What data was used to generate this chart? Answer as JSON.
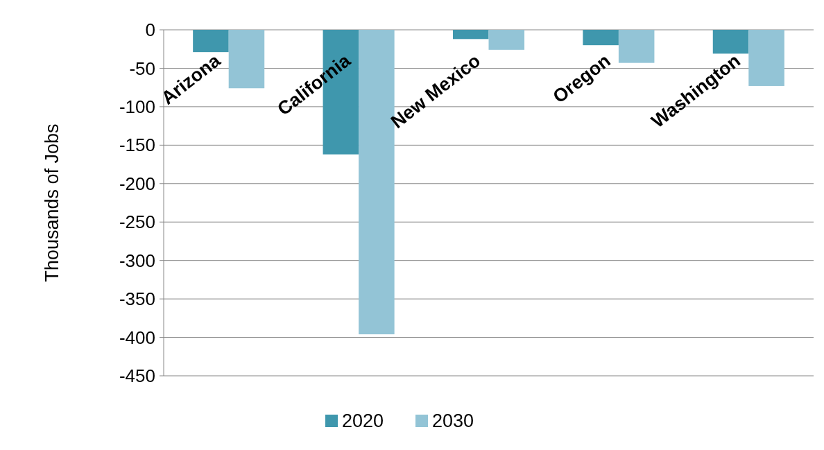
{
  "chart_data": {
    "type": "bar",
    "ylabel": "Thousands of Jobs",
    "categories": [
      "Arizona",
      "California",
      "New Mexico",
      "Oregon",
      "Washington"
    ],
    "series": [
      {
        "name": "2020",
        "color": "#3f97ad",
        "values": [
          -29,
          -162,
          -12,
          -20,
          -31
        ]
      },
      {
        "name": "2030",
        "color": "#93c4d6",
        "values": [
          -76,
          -396,
          -26,
          -43,
          -73
        ]
      }
    ],
    "ylim": [
      -450,
      0
    ],
    "yticks": [
      -450,
      -400,
      -350,
      -300,
      -250,
      -200,
      -150,
      -100,
      -50,
      0
    ],
    "grid": "y",
    "legend": "bottom"
  }
}
